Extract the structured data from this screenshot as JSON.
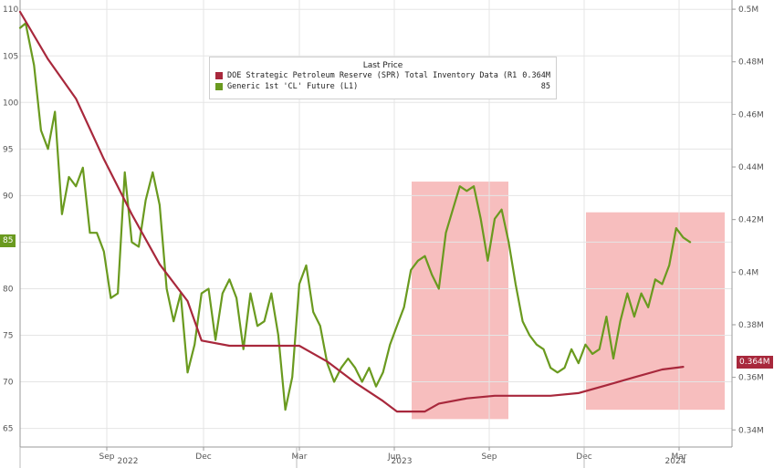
{
  "legend": {
    "header": "Last Price",
    "items": [
      {
        "name": "DOE Strategic Petroleum Reserve (SPR) Total Inventory Data  (R1)",
        "value": "0.364M",
        "color": "#a8283c"
      },
      {
        "name": "Generic 1st 'CL' Future  (L1)",
        "value": "85",
        "color": "#6a9a1f"
      }
    ]
  },
  "last_values": {
    "left": "85",
    "right": "0.364M"
  },
  "colors": {
    "oil": "#6a9a1f",
    "spr": "#a8283c",
    "highlight": "#f6b3b3",
    "grid": "#e5e5e5"
  },
  "chart_data": {
    "type": "line",
    "x_axis": {
      "months": [
        "Sep",
        "Dec",
        "Mar",
        "Jun",
        "Sep",
        "Dec",
        "Mar"
      ],
      "years": [
        "2022",
        "2023",
        "2024"
      ]
    },
    "y_left": {
      "ticks": [
        "65",
        "70",
        "75",
        "80",
        "85",
        "90",
        "95",
        "100",
        "105",
        "110"
      ],
      "ylim": [
        63,
        111
      ]
    },
    "y_right": {
      "ticks": [
        "0.34M",
        "0.36M",
        "0.38M",
        "0.4M",
        "0.42M",
        "0.44M",
        "0.46M",
        "0.48M",
        "0.5M"
      ],
      "ylim": [
        0.3335,
        0.5035
      ]
    },
    "highlight_ranges": [
      {
        "from": "Jun 2023",
        "to": "Sep 2023",
        "y_low": 66,
        "y_high": 91.5
      },
      {
        "from": "Dec 2023",
        "to": "Mar 2024",
        "y_low": 67,
        "y_high": 88.2
      }
    ],
    "series": [
      {
        "name": "Generic 1st 'CL' Future",
        "axis": "left",
        "points": [
          [
            0,
            108
          ],
          [
            0.4,
            108.5
          ],
          [
            1,
            104
          ],
          [
            1.5,
            97
          ],
          [
            2,
            95
          ],
          [
            2.5,
            99
          ],
          [
            3,
            88
          ],
          [
            3.5,
            92
          ],
          [
            4,
            91
          ],
          [
            4.5,
            93
          ],
          [
            5,
            86
          ],
          [
            5.5,
            86
          ],
          [
            6,
            84
          ],
          [
            6.5,
            79
          ],
          [
            7,
            79.5
          ],
          [
            7.5,
            92.5
          ],
          [
            8,
            85
          ],
          [
            8.5,
            84.5
          ],
          [
            9,
            89.5
          ],
          [
            9.5,
            92.5
          ],
          [
            10,
            89
          ],
          [
            10.5,
            80
          ],
          [
            11,
            76.5
          ],
          [
            11.5,
            79.5
          ],
          [
            12,
            71
          ],
          [
            12.5,
            74
          ],
          [
            13,
            79.5
          ],
          [
            13.5,
            80
          ],
          [
            14,
            74.5
          ],
          [
            14.5,
            79.5
          ],
          [
            15,
            81
          ],
          [
            15.5,
            79
          ],
          [
            16,
            73.5
          ],
          [
            16.5,
            79.5
          ],
          [
            17,
            76
          ],
          [
            17.5,
            76.5
          ],
          [
            18,
            79.5
          ],
          [
            18.5,
            75
          ],
          [
            19,
            67
          ],
          [
            19.5,
            70.5
          ],
          [
            20,
            80.5
          ],
          [
            20.5,
            82.5
          ],
          [
            21,
            77.5
          ],
          [
            21.5,
            76
          ],
          [
            22,
            72
          ],
          [
            22.5,
            70
          ],
          [
            23,
            71.5
          ],
          [
            23.5,
            72.5
          ],
          [
            24,
            71.5
          ],
          [
            24.5,
            70
          ],
          [
            25,
            71.5
          ],
          [
            25.5,
            69.5
          ],
          [
            26,
            71
          ],
          [
            26.5,
            74
          ],
          [
            27,
            76
          ],
          [
            27.5,
            78
          ],
          [
            28,
            82
          ],
          [
            28.5,
            83
          ],
          [
            29,
            83.5
          ],
          [
            29.5,
            81.5
          ],
          [
            30,
            80
          ],
          [
            30.5,
            86
          ],
          [
            31,
            88.5
          ],
          [
            31.5,
            91
          ],
          [
            32,
            90.5
          ],
          [
            32.5,
            91
          ],
          [
            33,
            87.5
          ],
          [
            33.5,
            83
          ],
          [
            34,
            87.5
          ],
          [
            34.5,
            88.5
          ],
          [
            35,
            85
          ],
          [
            35.5,
            80.5
          ],
          [
            36,
            76.5
          ],
          [
            36.5,
            75
          ],
          [
            37,
            74
          ],
          [
            37.5,
            73.5
          ],
          [
            38,
            71.5
          ],
          [
            38.5,
            71
          ],
          [
            39,
            71.5
          ],
          [
            39.5,
            73.5
          ],
          [
            40,
            72
          ],
          [
            40.5,
            74
          ],
          [
            41,
            73
          ],
          [
            41.5,
            73.5
          ],
          [
            42,
            77
          ],
          [
            42.5,
            72.5
          ],
          [
            43,
            76.5
          ],
          [
            43.5,
            79.5
          ],
          [
            44,
            77
          ],
          [
            44.5,
            79.5
          ],
          [
            45,
            78
          ],
          [
            45.5,
            81
          ],
          [
            46,
            80.5
          ],
          [
            46.5,
            82.5
          ],
          [
            47,
            86.5
          ],
          [
            47.5,
            85.5
          ],
          [
            48,
            85
          ]
        ]
      },
      {
        "name": "DOE Strategic Petroleum Reserve (SPR) Total Inventory Data",
        "axis": "right",
        "points": [
          [
            0,
            0.499
          ],
          [
            2,
            0.481
          ],
          [
            4,
            0.466
          ],
          [
            6,
            0.443
          ],
          [
            8,
            0.422
          ],
          [
            10,
            0.403
          ],
          [
            12,
            0.389
          ],
          [
            13,
            0.374
          ],
          [
            15,
            0.372
          ],
          [
            18,
            0.372
          ],
          [
            20,
            0.372
          ],
          [
            22,
            0.366
          ],
          [
            24,
            0.358
          ],
          [
            26,
            0.351
          ],
          [
            27,
            0.347
          ],
          [
            29,
            0.347
          ],
          [
            30,
            0.35
          ],
          [
            32,
            0.352
          ],
          [
            34,
            0.353
          ],
          [
            36,
            0.353
          ],
          [
            38,
            0.353
          ],
          [
            40,
            0.354
          ],
          [
            42,
            0.357
          ],
          [
            44,
            0.36
          ],
          [
            46,
            0.363
          ],
          [
            47.5,
            0.364
          ]
        ]
      }
    ]
  }
}
